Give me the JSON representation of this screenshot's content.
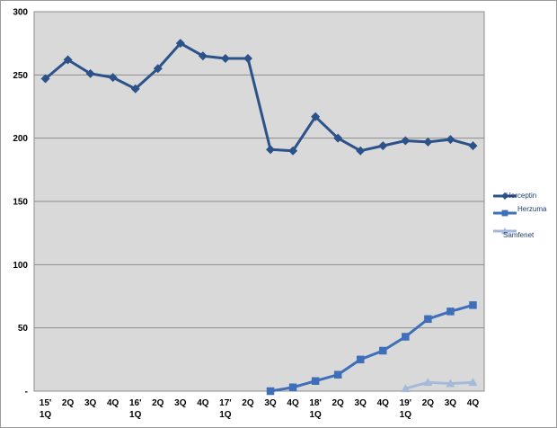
{
  "chart_data": {
    "type": "line",
    "categories": [
      "15' 1Q",
      "2Q",
      "3Q",
      "4Q",
      "16' 1Q",
      "2Q",
      "3Q",
      "4Q",
      "17' 1Q",
      "2Q",
      "3Q",
      "4Q",
      "18' 1Q",
      "2Q",
      "3Q",
      "4Q",
      "19' 1Q",
      "2Q",
      "3Q",
      "4Q"
    ],
    "x_tick_labels": [
      [
        "15'",
        "1Q"
      ],
      [
        "2Q"
      ],
      [
        "3Q"
      ],
      [
        "4Q"
      ],
      [
        "16'",
        "1Q"
      ],
      [
        "2Q"
      ],
      [
        "3Q"
      ],
      [
        "4Q"
      ],
      [
        "17'",
        "1Q"
      ],
      [
        "2Q"
      ],
      [
        "3Q"
      ],
      [
        "4Q"
      ],
      [
        "18'",
        "1Q"
      ],
      [
        "2Q"
      ],
      [
        "3Q"
      ],
      [
        "4Q"
      ],
      [
        "19'",
        "1Q"
      ],
      [
        "2Q"
      ],
      [
        "3Q"
      ],
      [
        "4Q"
      ]
    ],
    "ylim": [
      0,
      300
    ],
    "y_ticks": [
      0,
      50,
      100,
      150,
      200,
      250,
      300
    ],
    "y_tick_labels": [
      "-",
      "50",
      "100",
      "150",
      "200",
      "250",
      "300"
    ],
    "grid": "horizontal",
    "legend_position": "right",
    "series": [
      {
        "name": "Herceptin",
        "marker": "diamond",
        "color": "#2b5289",
        "values": [
          247,
          262,
          251,
          248,
          239,
          255,
          275,
          265,
          263,
          263,
          191,
          190,
          217,
          200,
          190,
          194,
          198,
          197,
          199,
          194
        ]
      },
      {
        "name": "Herzuma",
        "marker": "square",
        "color": "#3f6fb8",
        "values": [
          null,
          null,
          null,
          null,
          null,
          null,
          null,
          null,
          null,
          null,
          0,
          3,
          8,
          13,
          25,
          32,
          43,
          57,
          63,
          68
        ]
      },
      {
        "name": "Samfenet",
        "marker": "triangle",
        "color": "#a5bad9",
        "values": [
          null,
          null,
          null,
          null,
          null,
          null,
          null,
          null,
          null,
          null,
          null,
          null,
          null,
          null,
          null,
          null,
          2,
          7,
          6,
          7
        ]
      }
    ]
  }
}
